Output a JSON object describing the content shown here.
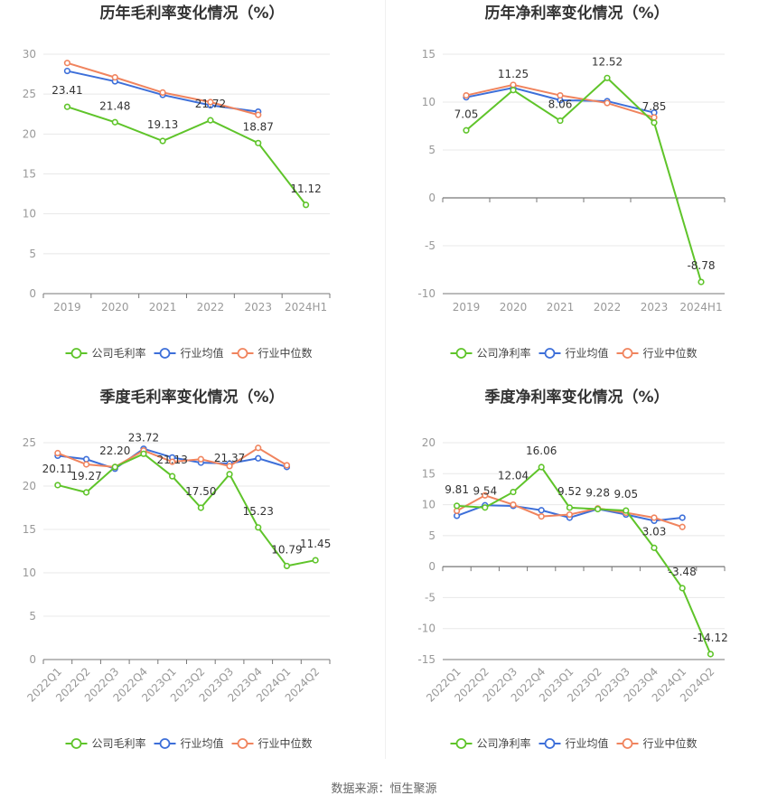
{
  "source": "数据来源：恒生聚源",
  "colors": {
    "company": "#5fc42a",
    "average": "#3d6fd9",
    "median": "#f0845e",
    "grid": "#e8e8e8",
    "axis": "#999999"
  },
  "legend": {
    "avg": "行业均值",
    "median": "行业中位数"
  },
  "chart_data": [
    {
      "type": "line",
      "title": "历年毛利率变化情况（%）",
      "categories": [
        "2019",
        "2020",
        "2021",
        "2022",
        "2023",
        "2024H1"
      ],
      "ylim": [
        0,
        30
      ],
      "yticks": [
        0,
        5,
        10,
        15,
        20,
        25,
        30
      ],
      "tick_rotation": 0,
      "legend_position": "bottom",
      "series": [
        {
          "name": "公司毛利率",
          "key": "company",
          "values": [
            23.41,
            21.48,
            19.13,
            21.72,
            18.87,
            11.12
          ],
          "labels": [
            "23.41",
            "21.48",
            "19.13",
            "21.72",
            "18.87",
            "11.12"
          ]
        },
        {
          "name": "行业均值",
          "key": "average",
          "values": [
            27.9,
            26.6,
            24.9,
            23.6,
            22.8,
            null
          ]
        },
        {
          "name": "行业中位数",
          "key": "median",
          "values": [
            28.9,
            27.1,
            25.2,
            24.0,
            22.4,
            null
          ]
        }
      ]
    },
    {
      "type": "line",
      "title": "历年净利率变化情况（%）",
      "categories": [
        "2019",
        "2020",
        "2021",
        "2022",
        "2023",
        "2024H1"
      ],
      "ylim": [
        -10,
        15
      ],
      "yticks": [
        -10,
        -5,
        0,
        5,
        10,
        15
      ],
      "tick_rotation": 0,
      "legend_position": "bottom",
      "series": [
        {
          "name": "公司净利率",
          "key": "company",
          "values": [
            7.05,
            11.25,
            8.06,
            12.52,
            7.85,
            -8.78
          ],
          "labels": [
            "7.05",
            "11.25",
            "8.06",
            "12.52",
            "7.85",
            "-8.78"
          ]
        },
        {
          "name": "行业均值",
          "key": "average",
          "values": [
            10.5,
            11.5,
            10.2,
            10.1,
            8.9,
            null
          ]
        },
        {
          "name": "行业中位数",
          "key": "median",
          "values": [
            10.7,
            11.8,
            10.7,
            9.9,
            8.4,
            null
          ]
        }
      ]
    },
    {
      "type": "line",
      "title": "季度毛利率变化情况（%）",
      "categories": [
        "2022Q1",
        "2022Q2",
        "2022Q3",
        "2022Q4",
        "2023Q1",
        "2023Q2",
        "2023Q3",
        "2023Q4",
        "2024Q1",
        "2024Q2"
      ],
      "ylim": [
        0,
        25
      ],
      "yticks": [
        0,
        5,
        10,
        15,
        20,
        25
      ],
      "tick_rotation": -45,
      "legend_position": "bottom",
      "series": [
        {
          "name": "公司毛利率",
          "key": "company",
          "values": [
            20.11,
            19.27,
            22.2,
            23.72,
            21.13,
            17.5,
            21.37,
            15.23,
            10.79,
            11.45
          ],
          "labels": [
            "20.11",
            "19.27",
            "22.20",
            "23.72",
            "21.13",
            "17.50",
            "21.37",
            "15.23",
            "10.79",
            "11.45"
          ]
        },
        {
          "name": "行业均值",
          "key": "average",
          "values": [
            23.5,
            23.1,
            22.0,
            24.3,
            23.3,
            22.7,
            22.6,
            23.2,
            22.2,
            null
          ]
        },
        {
          "name": "行业中位数",
          "key": "median",
          "values": [
            23.8,
            22.5,
            22.2,
            24.1,
            22.8,
            23.1,
            22.3,
            24.4,
            22.4,
            null
          ]
        }
      ]
    },
    {
      "type": "line",
      "title": "季度净利率变化情况（%）",
      "categories": [
        "2022Q1",
        "2022Q2",
        "2022Q3",
        "2022Q4",
        "2023Q1",
        "2023Q2",
        "2023Q3",
        "2023Q4",
        "2024Q1",
        "2024Q2"
      ],
      "ylim": [
        -15,
        20
      ],
      "yticks": [
        -15,
        -10,
        -5,
        0,
        5,
        10,
        15,
        20
      ],
      "tick_rotation": -45,
      "legend_position": "bottom",
      "series": [
        {
          "name": "公司净利率",
          "key": "company",
          "values": [
            9.81,
            9.54,
            12.04,
            16.06,
            9.52,
            9.28,
            9.05,
            3.03,
            -3.48,
            -14.12
          ],
          "labels": [
            "9.81",
            "9.54",
            "12.04",
            "16.06",
            "9.52",
            "9.28",
            "9.05",
            "3.03",
            "-3.48",
            "-14.12"
          ]
        },
        {
          "name": "行业均值",
          "key": "average",
          "values": [
            8.2,
            9.9,
            9.8,
            9.1,
            7.9,
            9.3,
            8.4,
            7.4,
            7.9,
            null
          ]
        },
        {
          "name": "行业中位数",
          "key": "median",
          "values": [
            9.0,
            11.5,
            10.0,
            8.1,
            8.4,
            9.4,
            8.7,
            7.9,
            6.4,
            null
          ]
        }
      ]
    }
  ]
}
